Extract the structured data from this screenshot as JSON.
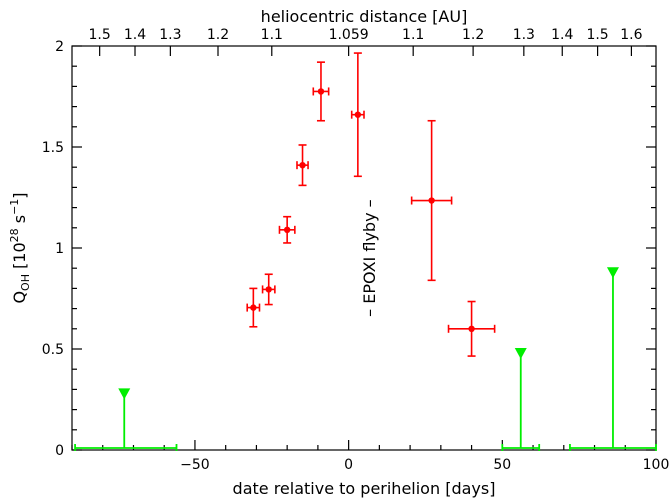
{
  "chart_data": {
    "type": "scatter",
    "title": "",
    "xlabel": "date relative to perihelion [days]",
    "ylabel_main": "Q",
    "ylabel_sub": "OH",
    "ylabel_unit_open": " [10",
    "ylabel_exp1": "28",
    "ylabel_unit_mid": " s",
    "ylabel_exp2": "−1",
    "ylabel_unit_close": "]",
    "top_xlabel": "heliocentric distance [AU]",
    "xlim": [
      -90,
      100
    ],
    "ylim": [
      0,
      2
    ],
    "x_ticks": [
      {
        "value": -50,
        "label": "−50"
      },
      {
        "value": 0,
        "label": "0"
      },
      {
        "value": 50,
        "label": "50"
      },
      {
        "value": 100,
        "label": "100"
      }
    ],
    "y_ticks": [
      {
        "value": 0,
        "label": "0"
      },
      {
        "value": 0.5,
        "label": "0.5"
      },
      {
        "value": 1,
        "label": "1"
      },
      {
        "value": 1.5,
        "label": "1.5"
      },
      {
        "value": 2,
        "label": "2"
      }
    ],
    "top_ticks": [
      {
        "x": -81,
        "label": "1.5"
      },
      {
        "x": -69.5,
        "label": "1.4"
      },
      {
        "x": -58,
        "label": "1.3"
      },
      {
        "x": -42.5,
        "label": "1.2"
      },
      {
        "x": -25,
        "label": "1.1"
      },
      {
        "x": 0,
        "label": "1.059"
      },
      {
        "x": 21,
        "label": "1.1"
      },
      {
        "x": 40.5,
        "label": "1.2"
      },
      {
        "x": 57,
        "label": "1.3"
      },
      {
        "x": 69.5,
        "label": "1.4"
      },
      {
        "x": 81,
        "label": "1.5"
      },
      {
        "x": 92,
        "label": "1.6"
      }
    ],
    "series": [
      {
        "color": "#ff0000",
        "points": [
          {
            "x": -31,
            "y": 0.705,
            "xerr": 2,
            "yerr_low": 0.095,
            "yerr_high": 0.095
          },
          {
            "x": -26,
            "y": 0.795,
            "xerr": 2,
            "yerr_low": 0.075,
            "yerr_high": 0.075
          },
          {
            "x": -20,
            "y": 1.09,
            "xerr": 2.5,
            "yerr_low": 0.065,
            "yerr_high": 0.065
          },
          {
            "x": -15,
            "y": 1.41,
            "xerr": 1.8,
            "yerr_low": 0.1,
            "yerr_high": 0.1
          },
          {
            "x": -9,
            "y": 1.775,
            "xerr": 2.5,
            "yerr_low": 0.145,
            "yerr_high": 0.145
          },
          {
            "x": 3,
            "y": 1.66,
            "xerr": 2,
            "yerr_low": 0.305,
            "yerr_high": 0.305
          },
          {
            "x": 27,
            "y": 1.235,
            "xerr": 6.5,
            "yerr_low": 0.395,
            "yerr_high": 0.395
          },
          {
            "x": 40,
            "y": 0.6,
            "xerr": 7.5,
            "yerr_low": 0.135,
            "yerr_high": 0.135
          }
        ]
      },
      {
        "color": "#00ee00",
        "marker": "upper-limit",
        "points": [
          {
            "x": -73,
            "y": 0.29,
            "xmin": -89,
            "xmax": -56
          },
          {
            "x": 56,
            "y": 0.49,
            "xmin": 50,
            "xmax": 62
          },
          {
            "x": 86,
            "y": 0.89,
            "xmin": 72,
            "xmax": 100
          }
        ]
      }
    ],
    "annotation": {
      "text": "– EPOXI flyby –",
      "x": 7,
      "y": 0.95,
      "rotation": -90
    },
    "grid": false,
    "legend": "none"
  }
}
